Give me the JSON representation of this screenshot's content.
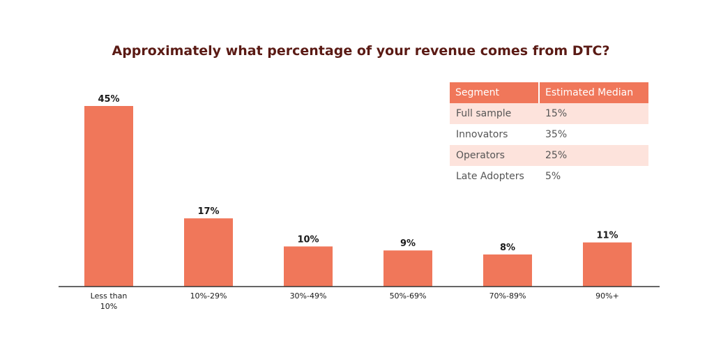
{
  "colors": {
    "bar": "#f0775a",
    "title": "#5a1a14",
    "table_header_bg": "#f0775a",
    "table_stripe_bg": "#fde3dc",
    "table_plain_bg": "#ffffff",
    "axis": "#333333"
  },
  "chart_data": {
    "type": "bar",
    "title": "Approximately what percentage of your revenue comes from DTC?",
    "categories": [
      "Less than 10%",
      "10%-29%",
      "30%-49%",
      "50%-69%",
      "70%-89%",
      "90%+"
    ],
    "category_lines": [
      [
        "Less than",
        "10%"
      ],
      [
        "10%-29%"
      ],
      [
        "30%-49%"
      ],
      [
        "50%-69%"
      ],
      [
        "70%-89%"
      ],
      [
        "90%+"
      ]
    ],
    "values": [
      45,
      17,
      10,
      9,
      8,
      11
    ],
    "data_labels": [
      "45%",
      "17%",
      "10%",
      "9%",
      "8%",
      "11%"
    ],
    "unit": "%",
    "ylim": [
      0,
      45
    ],
    "grid": false,
    "legend": "none"
  },
  "table": {
    "headers": [
      "Segment",
      "Estimated Median"
    ],
    "rows": [
      [
        "Full sample",
        "15%"
      ],
      [
        "Innovators",
        "35%"
      ],
      [
        "Operators",
        "25%"
      ],
      [
        "Late Adopters",
        "5%"
      ]
    ]
  }
}
